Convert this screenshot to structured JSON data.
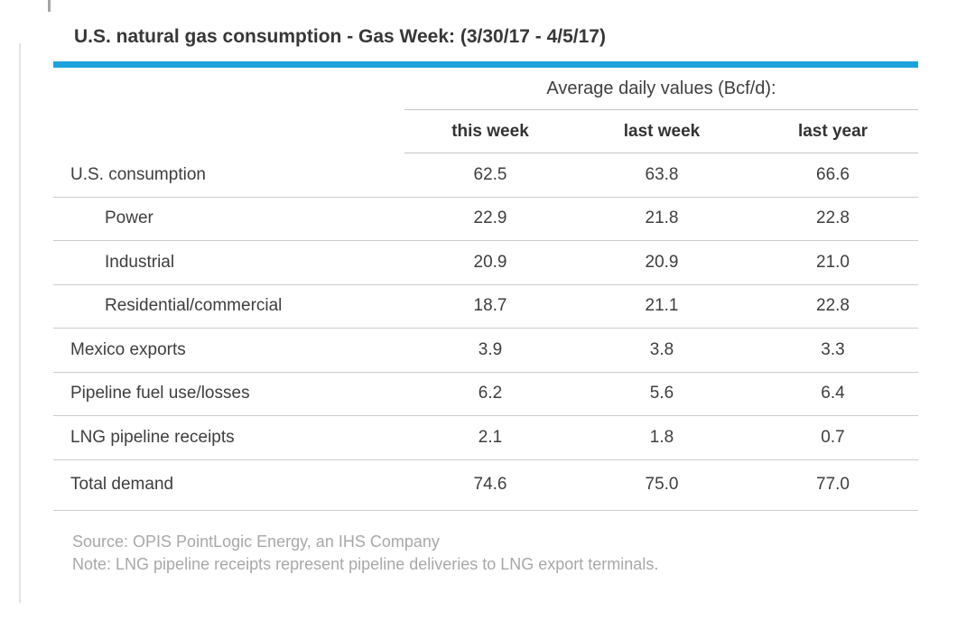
{
  "title": "U.S. natural gas consumption - Gas Week: (3/30/17 - 4/5/17)",
  "colors": {
    "accent": "#1ca3dd"
  },
  "table": {
    "group_header": "Average daily values (Bcf/d):",
    "columns": [
      "this week",
      "last week",
      "last year"
    ],
    "rows": [
      {
        "label": "U.S. consumption",
        "indent": false,
        "values": [
          "62.5",
          "63.8",
          "66.6"
        ]
      },
      {
        "label": "Power",
        "indent": true,
        "values": [
          "22.9",
          "21.8",
          "22.8"
        ]
      },
      {
        "label": "Industrial",
        "indent": true,
        "values": [
          "20.9",
          "20.9",
          "21.0"
        ]
      },
      {
        "label": "Residential/commercial",
        "indent": true,
        "values": [
          "18.7",
          "21.1",
          "22.8"
        ]
      },
      {
        "label": "Mexico exports",
        "indent": false,
        "values": [
          "3.9",
          "3.8",
          "3.3"
        ]
      },
      {
        "label": "Pipeline fuel use/losses",
        "indent": false,
        "values": [
          "6.2",
          "5.6",
          "6.4"
        ]
      },
      {
        "label": "LNG pipeline receipts",
        "indent": false,
        "values": [
          "2.1",
          "1.8",
          "0.7"
        ]
      },
      {
        "label": "Total demand",
        "indent": false,
        "values": [
          "74.6",
          "75.0",
          "77.0"
        ]
      }
    ]
  },
  "footer": {
    "source": "Source: OPIS PointLogic Energy, an IHS Company",
    "note": "Note: LNG pipeline receipts represent pipeline deliveries to LNG export terminals."
  },
  "chart_data": {
    "type": "table",
    "title": "U.S. natural gas consumption - Gas Week: (3/30/17 - 4/5/17)",
    "subtitle": "Average daily values (Bcf/d):",
    "categories": [
      "U.S. consumption",
      "Power",
      "Industrial",
      "Residential/commercial",
      "Mexico exports",
      "Pipeline fuel use/losses",
      "LNG pipeline receipts",
      "Total demand"
    ],
    "series": [
      {
        "name": "this week",
        "values": [
          62.5,
          22.9,
          20.9,
          18.7,
          3.9,
          6.2,
          2.1,
          74.6
        ]
      },
      {
        "name": "last week",
        "values": [
          63.8,
          21.8,
          20.9,
          21.1,
          3.8,
          5.6,
          1.8,
          75.0
        ]
      },
      {
        "name": "last year",
        "values": [
          66.6,
          22.8,
          21.0,
          22.8,
          3.3,
          6.4,
          0.7,
          77.0
        ]
      }
    ],
    "units": "Bcf/d",
    "sub_rows_of_us_consumption": [
      "Power",
      "Industrial",
      "Residential/commercial"
    ]
  }
}
